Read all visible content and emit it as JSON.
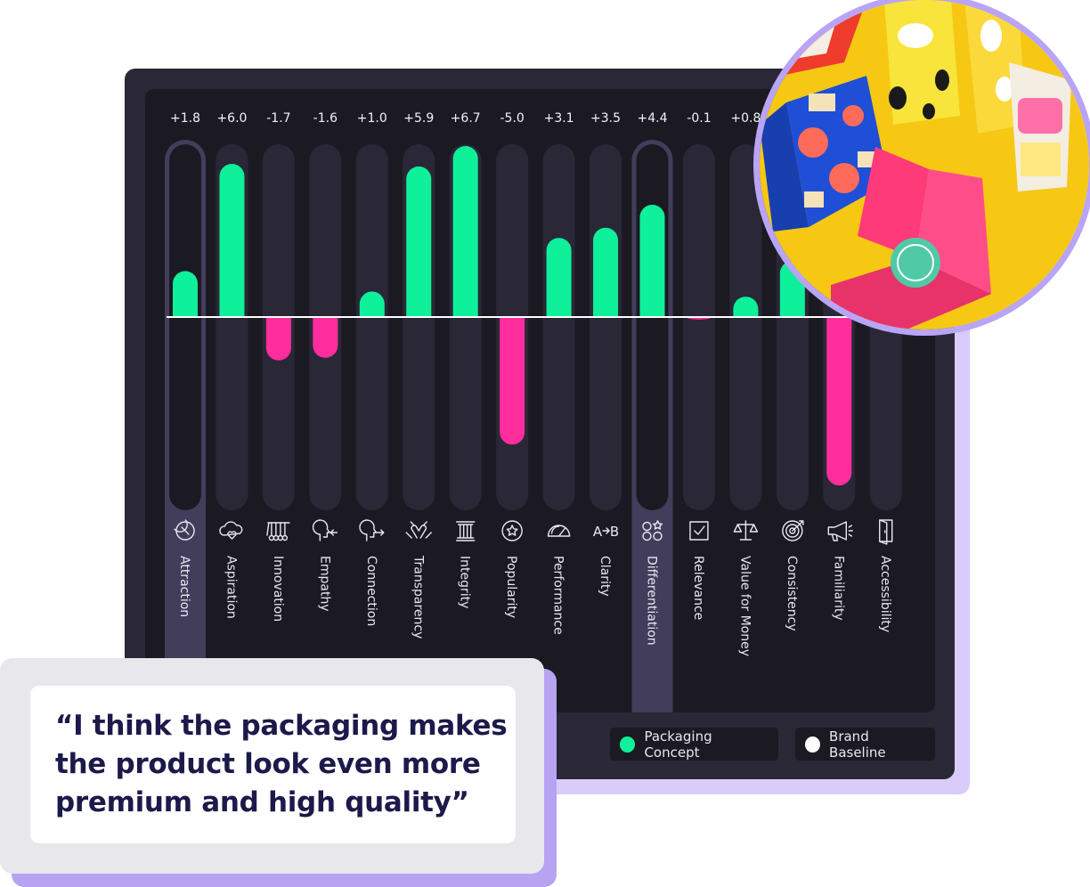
{
  "quote": {
    "text": "“I think the packaging makes the product look even more premium and high quality”"
  },
  "legend": {
    "items": [
      {
        "label": "Packaging Concept",
        "color": "#0ff09a"
      },
      {
        "label": "Brand Baseline",
        "color": "#ffffff"
      }
    ]
  },
  "chart_data": {
    "type": "bar",
    "categories": [
      "Attraction",
      "Aspiration",
      "Innovation",
      "Empathy",
      "Connection",
      "Transparency",
      "Integrity",
      "Popularity",
      "Performance",
      "Clarity",
      "Differentiation",
      "Relevance",
      "Value for Money",
      "Consistency",
      "Familiarity",
      "Accessibility"
    ],
    "series": [
      {
        "name": "Packaging Concept",
        "values": [
          1.8,
          6.0,
          -1.7,
          -1.6,
          1.0,
          5.9,
          6.7,
          -5.0,
          3.1,
          3.5,
          4.4,
          -0.1,
          0.8,
          2.2,
          -6.6,
          0.0
        ]
      }
    ],
    "value_labels": [
      "+1.8",
      "+6.0",
      "-1.7",
      "-1.6",
      "+1.0",
      "+5.9",
      "+6.7",
      "-5.0",
      "+3.1",
      "+3.5",
      "+4.4",
      "-0.1",
      "+0.8",
      "",
      "",
      ""
    ],
    "icons": [
      "magnet-icon",
      "cloud-heart-icon",
      "cradle-icon",
      "empathy-head-icon",
      "connection-head-icon",
      "hands-icon",
      "pillar-icon",
      "star-circle-icon",
      "gauge-icon",
      "a-to-b-icon",
      "shapes-icon",
      "checkbox-icon",
      "scales-icon",
      "target-icon",
      "megaphone-icon",
      "door-icon"
    ],
    "highlighted": [
      "Attraction",
      "Differentiation"
    ],
    "baseline": 0,
    "ylim": [
      -6.7,
      6.7
    ],
    "positive_color": "#0ff09a",
    "negative_color": "#ff2d9e",
    "track_color": "#2a2836",
    "highlight_color": "#413d5a"
  }
}
